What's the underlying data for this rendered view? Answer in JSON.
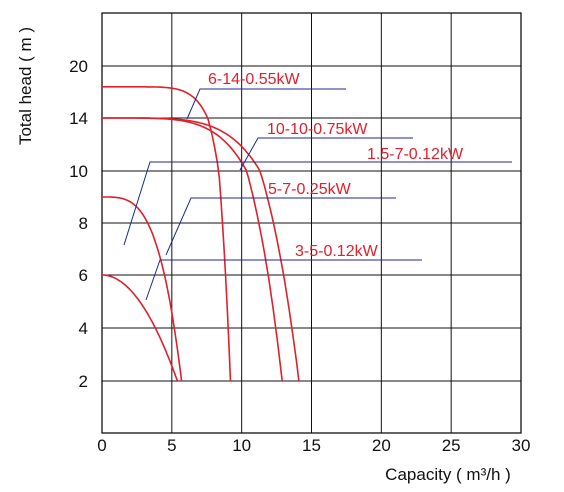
{
  "chart_data": {
    "type": "line",
    "xlabel": "Capacity ( m³/h )",
    "ylabel": "Total head ( m )",
    "xlim": [
      0,
      30
    ],
    "ylim": [
      0,
      24
    ],
    "x_ticks": [
      "0",
      "5",
      "10",
      "15",
      "20",
      "25",
      "30"
    ],
    "y_ticks": [
      "2",
      "4",
      "6",
      "8",
      "10",
      "14",
      "20"
    ],
    "grid": true,
    "curve_color": "#e0202c",
    "leader_color": "#1c2b8c",
    "series": [
      {
        "name": "6-14-0.55kW",
        "shutoff_head": 17.6,
        "pivot": 7.5,
        "max_capacity": 9.2
      },
      {
        "name": "10-10-0.75kW",
        "shutoff_head": 14.0,
        "pivot": 5.0,
        "max_capacity": 12.9
      },
      {
        "name": "1.5-7-0.12kW",
        "shutoff_head": 14.0,
        "pivot": 5.0,
        "max_capacity": 14.1
      },
      {
        "name": "5-7-0.25kW",
        "shutoff_head": 9.0,
        "pivot": 3.5,
        "max_capacity": 5.7
      },
      {
        "name": "3-5-0.12kW",
        "shutoff_head": 6.0,
        "pivot": 2.0,
        "max_capacity": 5.4
      }
    ]
  }
}
